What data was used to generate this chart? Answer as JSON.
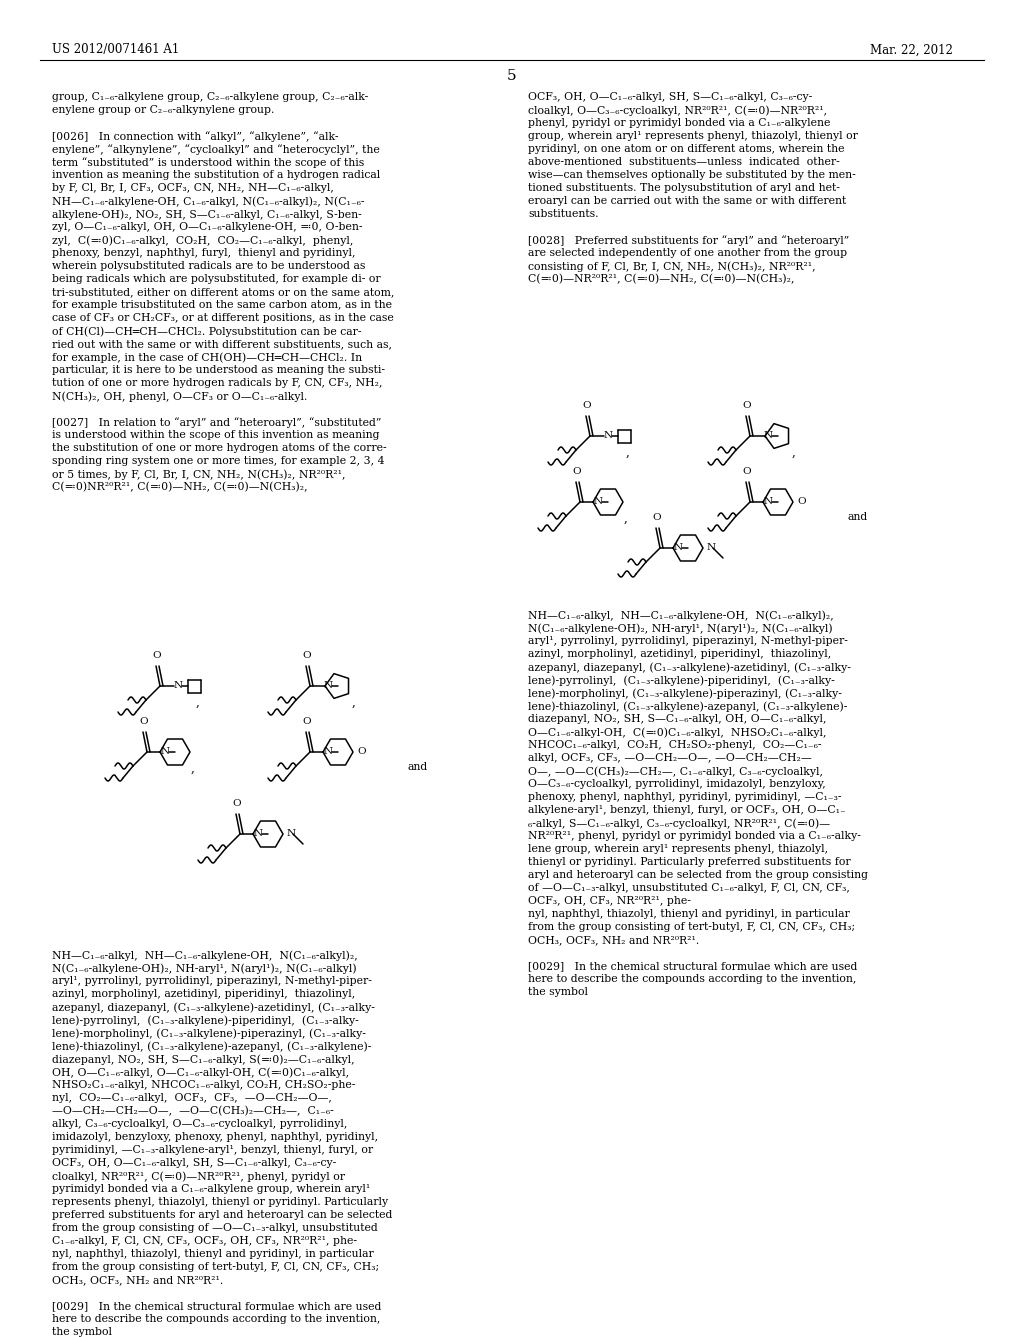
{
  "background_color": "#ffffff",
  "patent_number": "US 2012/0071461 A1",
  "patent_date": "Mar. 22, 2012",
  "page_number": "5"
}
